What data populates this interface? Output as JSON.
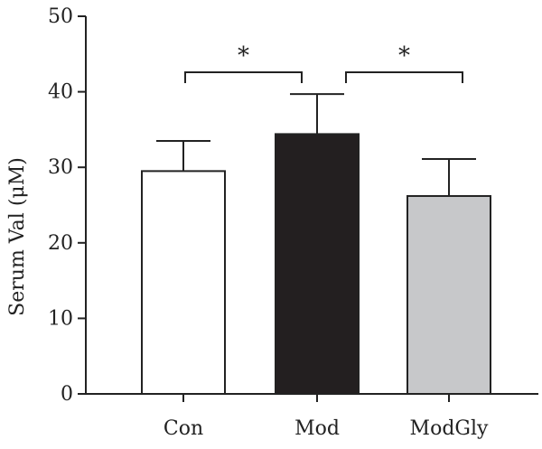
{
  "chart_data": {
    "type": "bar",
    "categories": [
      "Con",
      "Mod",
      "ModGly"
    ],
    "values": [
      29.5,
      34.4,
      26.2
    ],
    "errors": [
      4.0,
      5.3,
      4.9
    ],
    "colors": [
      "#ffffff",
      "#231f20",
      "#c7c8ca"
    ],
    "ylabel": "Serum Val (μM)",
    "ylim": [
      0,
      50
    ],
    "yticks": [
      0,
      10,
      20,
      30,
      40,
      50
    ],
    "significance": [
      {
        "from": 0,
        "to": 1,
        "label": "*"
      },
      {
        "from": 1,
        "to": 2,
        "label": "*"
      }
    ]
  }
}
